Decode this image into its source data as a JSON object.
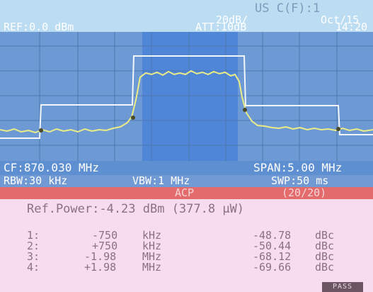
{
  "header": {
    "channel": "US C(F):1",
    "scale": "20dB/",
    "date": "Oct/15",
    "ref_level": "REF:0.0 dBm",
    "attenuation": "ATT:10dB",
    "time": "14:20"
  },
  "settings": {
    "center_freq": "CF:870.030 MHz",
    "span": "SPAN:5.00 MHz",
    "rbw": "RBW:30 kHz",
    "vbw": "VBW:1 MHz",
    "sweep": "SWP:50 ms"
  },
  "acp": {
    "title": "ACP",
    "count": "(20/20)",
    "ref_power": "Ref.Power:-4.23 dBm (377.8 µW)",
    "rows": [
      {
        "index": "1:",
        "offset": "-750",
        "offset_unit": "kHz",
        "value": "-48.78",
        "unit": "dBc"
      },
      {
        "index": "2:",
        "offset": "+750",
        "offset_unit": "kHz",
        "value": "-50.44",
        "unit": "dBc"
      },
      {
        "index": "3:",
        "offset": "-1.98",
        "offset_unit": "MHz",
        "value": "-68.12",
        "unit": "dBc"
      },
      {
        "index": "4:",
        "offset": "+1.98",
        "offset_unit": "MHz",
        "value": "-69.66",
        "unit": "dBc"
      }
    ],
    "verdict": "PASS"
  },
  "colors": {
    "screen_bg": "#bcdcf1",
    "plot_bg": "#6d9ad4",
    "trace": "#ecec86",
    "limit_mask": "#f2f6fb",
    "channel_band": "#4f86d8",
    "acp_bar": "#e36b6c",
    "results_bg": "#f7dced"
  }
}
